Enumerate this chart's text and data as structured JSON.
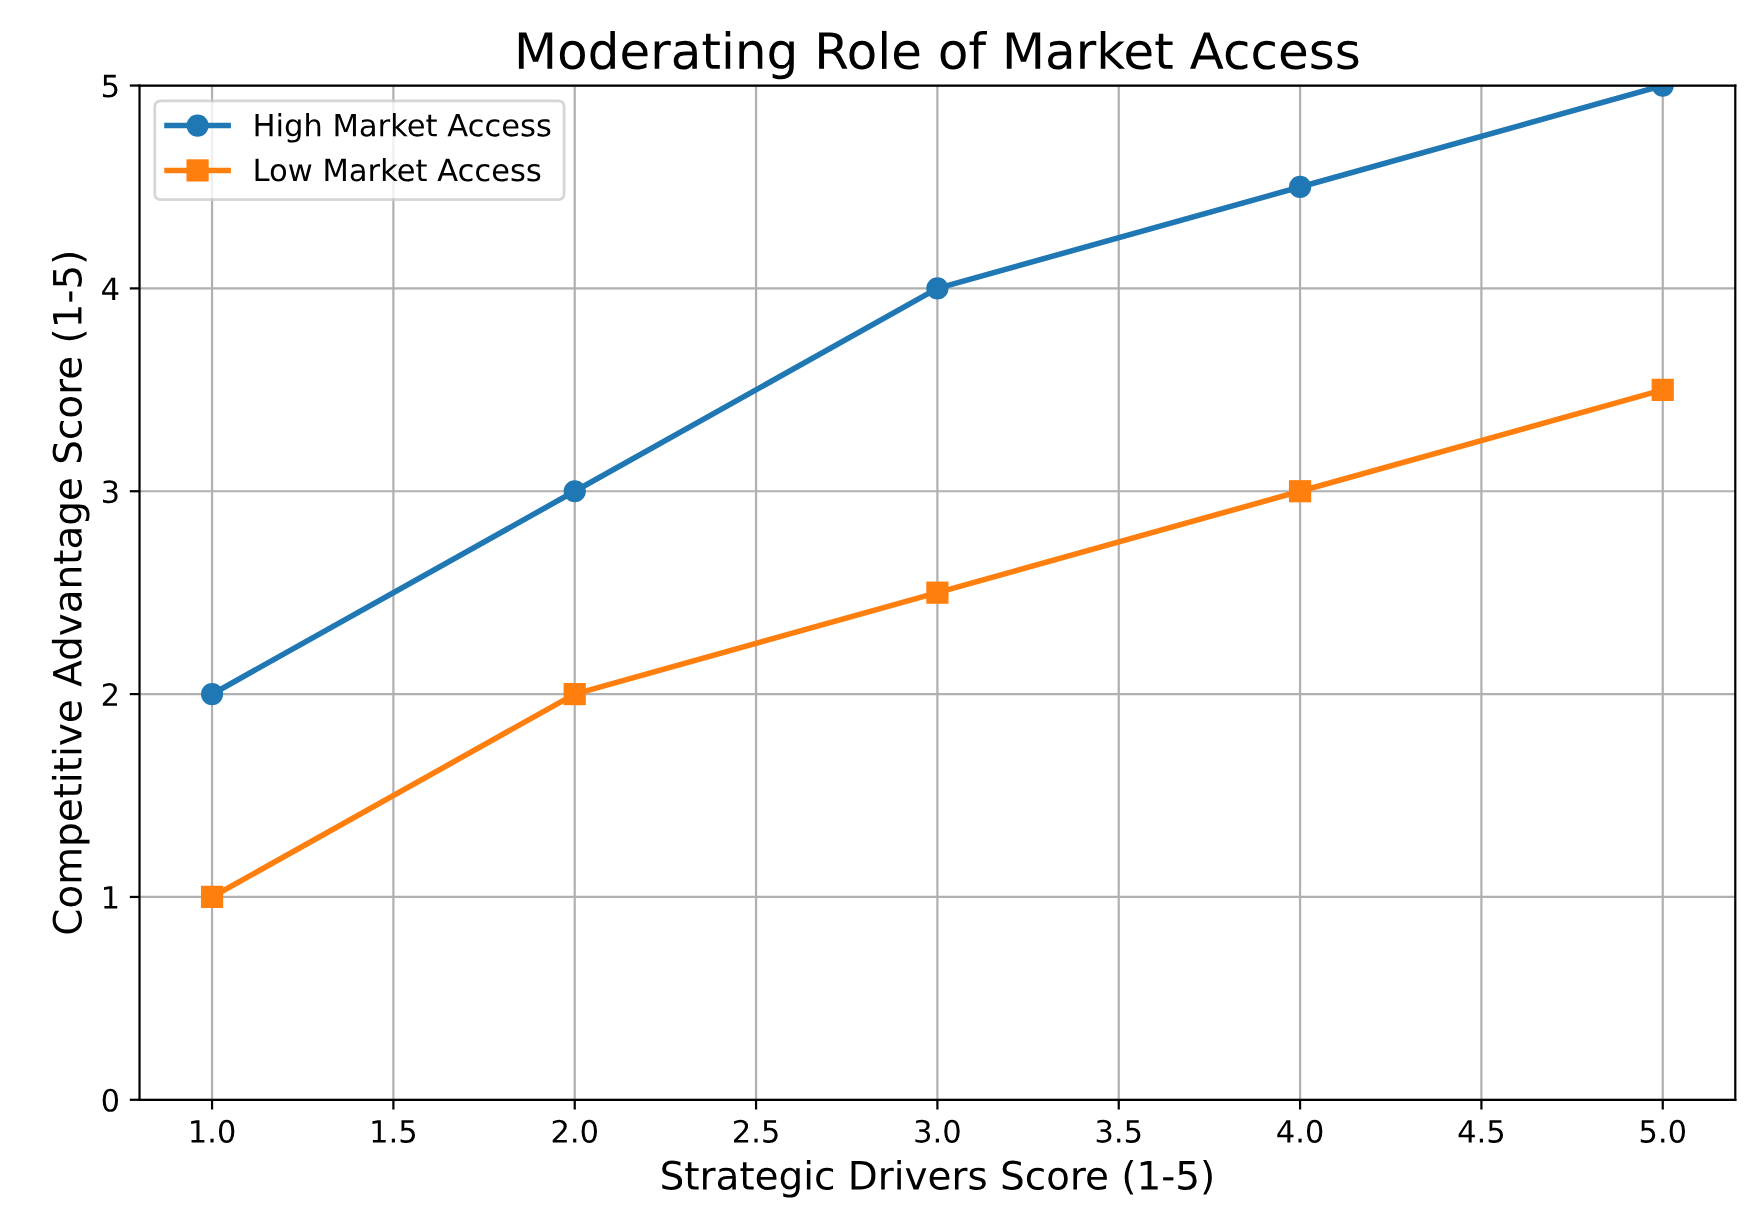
{
  "chart_data": {
    "type": "line",
    "title": "Moderating Role of Market Access",
    "xlabel": "Strategic Drivers Score (1-5)",
    "ylabel": "Competitive Advantage Score (1-5)",
    "x": [
      1.0,
      2.0,
      3.0,
      4.0,
      5.0
    ],
    "series": [
      {
        "name": "High Market Access",
        "color": "#1f77b4",
        "marker": "circle",
        "values": [
          2,
          3,
          4,
          4.5,
          5
        ]
      },
      {
        "name": "Low Market Access",
        "color": "#ff7f0e",
        "marker": "square",
        "values": [
          1,
          2,
          2.5,
          3,
          3.5
        ]
      }
    ],
    "xlim": [
      0.8,
      5.2
    ],
    "xticks": [
      {
        "value": 1.0,
        "label": "1.0"
      },
      {
        "value": 1.5,
        "label": "1.5"
      },
      {
        "value": 2.0,
        "label": "2.0"
      },
      {
        "value": 2.5,
        "label": "2.5"
      },
      {
        "value": 3.0,
        "label": "3.0"
      },
      {
        "value": 3.5,
        "label": "3.5"
      },
      {
        "value": 4.0,
        "label": "4.0"
      },
      {
        "value": 4.5,
        "label": "4.5"
      },
      {
        "value": 5.0,
        "label": "5.0"
      }
    ],
    "ylim": [
      0,
      5
    ],
    "yticks": [
      0,
      1,
      2,
      3,
      4,
      5
    ],
    "grid": true,
    "legend": "top left",
    "line_style": "solid"
  }
}
